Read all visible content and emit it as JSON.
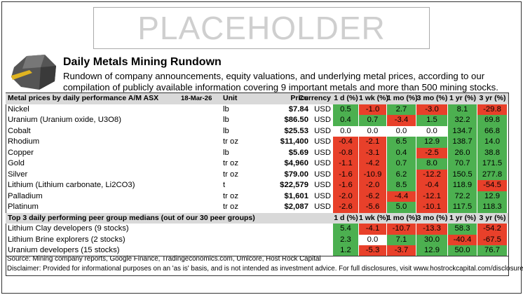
{
  "placeholder": "PLACEHOLDER",
  "header": {
    "title": "Daily Metals Mining Rundown",
    "subtitle": "Rundown of company announcements, equity valuations, and underlying metal prices, according to our compilation of publicly available information covering 9 important metals and more than 500 mining stocks."
  },
  "table": {
    "columns": [
      "Metal prices by daily performance  A/M ASX",
      "18-Mar-26",
      "Unit",
      "Price",
      "Currency",
      "1 d (%)",
      "1 wk (%)",
      "1 mo (%)",
      "3 mo (%)",
      "1 yr (%)",
      "3 yr (%)"
    ],
    "rows": [
      [
        "Nickel",
        "lb",
        "$7.84",
        "USD",
        "0.5",
        "-1.0",
        "2.7",
        "-3.0",
        "8.1",
        "-29.8"
      ],
      [
        "Uranium (Uranium oxide, U3O8)",
        "lb",
        "$86.50",
        "USD",
        "0.4",
        "0.7",
        "-3.4",
        "1.5",
        "32.2",
        "69.8"
      ],
      [
        "Cobalt",
        "lb",
        "$25.53",
        "USD",
        "0.0",
        "0.0",
        "0.0",
        "0.0",
        "134.7",
        "66.8"
      ],
      [
        "Rhodium",
        "tr oz",
        "$11,400",
        "USD",
        "-0.4",
        "-2.1",
        "6.5",
        "12.9",
        "138.7",
        "14.0"
      ],
      [
        "Copper",
        "lb",
        "$5.69",
        "USD",
        "-0.8",
        "-3.1",
        "0.4",
        "-2.5",
        "26.0",
        "38.8"
      ],
      [
        "Gold",
        "tr oz",
        "$4,960",
        "USD",
        "-1.1",
        "-4.2",
        "0.7",
        "8.0",
        "70.7",
        "171.5"
      ],
      [
        "Silver",
        "tr oz",
        "$79.00",
        "USD",
        "-1.6",
        "-10.9",
        "6.2",
        "-12.2",
        "150.5",
        "277.8"
      ],
      [
        "Lithium (Lithium carbonate, Li2CO3)",
        "t",
        "$22,579",
        "USD",
        "-1.6",
        "-2.0",
        "8.5",
        "-0.4",
        "118.9",
        "-54.5"
      ],
      [
        "Palladium",
        "tr oz",
        "$1,601",
        "USD",
        "-2.0",
        "-6.2",
        "-4.4",
        "-12.1",
        "72.2",
        "12.9"
      ],
      [
        "Platinum",
        "tr oz",
        "$2,087",
        "USD",
        "-2.6",
        "-5.6",
        "5.0",
        "-10.1",
        "117.5",
        "118.3"
      ]
    ]
  },
  "peer_table": {
    "columns": [
      "Top 3 daily performing peer group medians (out of our 30 peer groups)",
      "1 d (%)",
      "1 wk (%)",
      "1 mo (%)",
      "3 mo (%)",
      "1 yr (%)",
      "3 yr (%)"
    ],
    "rows": [
      [
        "Lithium Clay developers (9 stocks)",
        "5.4",
        "-4.1",
        "-10.7",
        "-13.3",
        "58.3",
        "-54.2"
      ],
      [
        "Lithium Brine explorers (2 stocks)",
        "2.3",
        "0.0",
        "7.1",
        "30.0",
        "-40.4",
        "-67.5"
      ],
      [
        "Uranium developers (15 stocks)",
        "1.2",
        "-5.3",
        "-3.7",
        "12.9",
        "50.0",
        "76.7"
      ]
    ]
  },
  "footer": {
    "source": "Source: Mining company reports, Google Finance, Tradingeconomics.com, Umicore, Host Rock Capital",
    "disclaimer": "Disclaimer: Provided for informational purposes on an 'as is' basis, and is not intended as investment advice. For full disclosures, visit www.hostrockcapital.com/disclosures."
  }
}
